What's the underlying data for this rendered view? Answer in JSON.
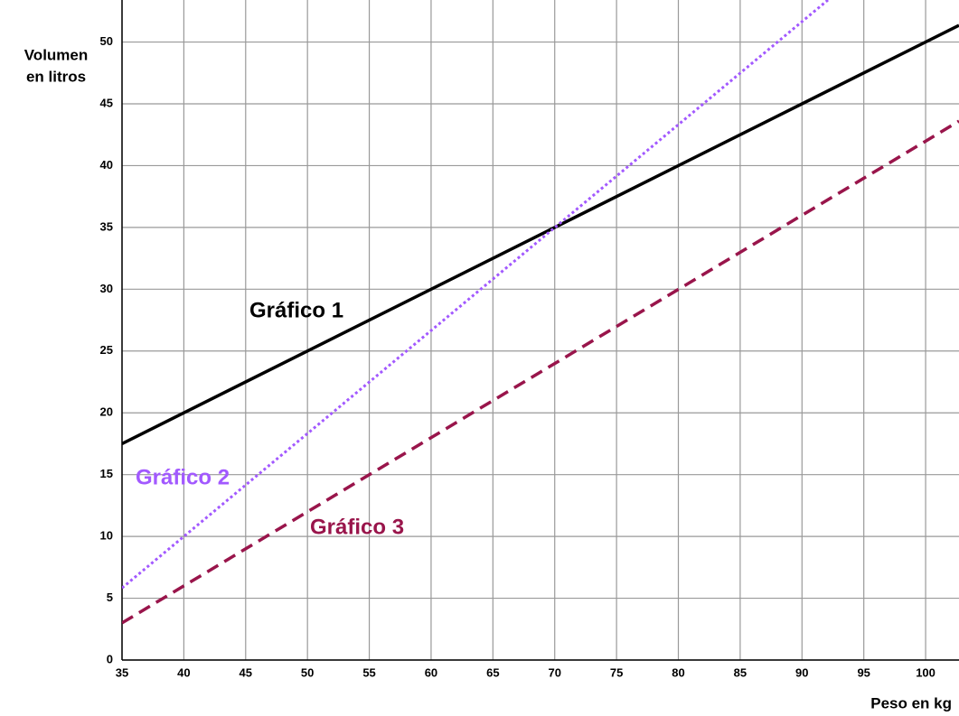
{
  "chart_data": {
    "type": "line",
    "ylabel": [
      "Volumen",
      "en litros"
    ],
    "xlabel": "Peso en kg",
    "xlim": [
      35,
      102.7
    ],
    "ylim": [
      0,
      53.4
    ],
    "xticks": [
      35,
      40,
      45,
      50,
      55,
      60,
      65,
      70,
      75,
      80,
      85,
      90,
      95,
      100
    ],
    "yticks": [
      0,
      5,
      10,
      15,
      20,
      25,
      30,
      35,
      40,
      45,
      50
    ],
    "grid": true,
    "series": [
      {
        "name": "Gráfico 1",
        "color": "#000000",
        "style": "solid",
        "x": [
          35,
          102.7
        ],
        "values": [
          17.5,
          51.35
        ]
      },
      {
        "name": "Gráfico 2",
        "color": "#a259ff",
        "style": "dotted",
        "x": [
          35,
          92.1
        ],
        "values": [
          5.83,
          53.4
        ]
      },
      {
        "name": "Gráfico 3",
        "color": "#99154b",
        "style": "dashed",
        "x": [
          35,
          102.7
        ],
        "values": [
          3,
          43.6
        ]
      }
    ]
  }
}
